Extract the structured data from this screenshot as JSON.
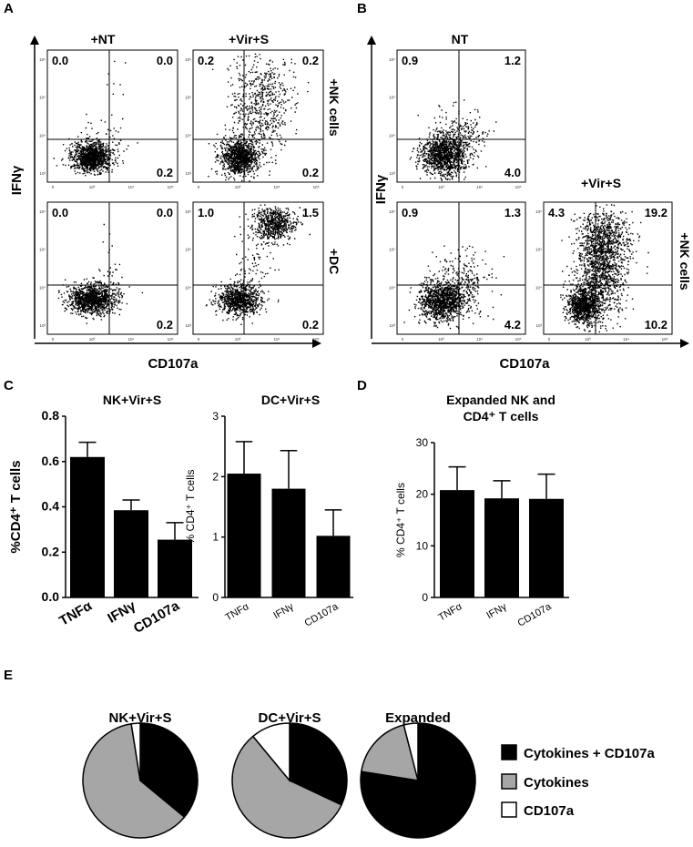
{
  "panel_labels": {
    "a": "A",
    "b": "B",
    "c": "C",
    "d": "D",
    "e": "E"
  },
  "panel_a": {
    "y_label": "IFNγ",
    "x_label": "CD107a",
    "col_titles": [
      "+NT",
      "+Vir+S"
    ],
    "row_labels": [
      "+NK cells",
      "+DC"
    ],
    "plots": [
      {
        "ul": "0.0",
        "ur": "0.0",
        "lr": "0.2"
      },
      {
        "ul": "0.2",
        "ur": "0.2",
        "lr": "0.2"
      },
      {
        "ul": "0.0",
        "ur": "0.0",
        "lr": "0.2"
      },
      {
        "ul": "1.0",
        "ur": "1.5",
        "lr": "0.2"
      }
    ]
  },
  "panel_b": {
    "y_label": "IFNγ",
    "x_label": "CD107a",
    "title_top": "NT",
    "title_right": "+Vir+S",
    "row_label": "+NK cells",
    "plots": [
      {
        "ul": "0.9",
        "ur": "1.2",
        "lr": "4.0"
      },
      {
        "ul": "0.9",
        "ur": "1.3",
        "lr": "4.2"
      },
      {
        "ul": "4.3",
        "ur": "19.2",
        "lr": "10.2"
      }
    ]
  },
  "chart_data": [
    {
      "type": "bar",
      "title": "NK+Vir+S",
      "ylabel": "%CD4⁺ T cells",
      "categories": [
        "TNFα",
        "IFNγ",
        "CD107a"
      ],
      "values": [
        0.62,
        0.385,
        0.255
      ],
      "errors": [
        0.065,
        0.045,
        0.075
      ],
      "ylim": [
        0,
        0.8
      ],
      "yticks": [
        "0.0",
        "0.2",
        "0.4",
        "0.6",
        "0.8"
      ]
    },
    {
      "type": "bar",
      "title": "DC+Vir+S",
      "ylabel": "% CD4⁺ T cells",
      "categories": [
        "TNFα",
        "IFNγ",
        "CD107a"
      ],
      "values": [
        2.05,
        1.8,
        1.02
      ],
      "errors": [
        0.53,
        0.63,
        0.43
      ],
      "ylim": [
        0,
        3
      ],
      "yticks": [
        "0",
        "1",
        "2",
        "3"
      ]
    },
    {
      "type": "bar",
      "title": "Expanded NK and CD4⁺ T cells",
      "title_lines": [
        "Expanded NK and",
        "CD4⁺ T cells"
      ],
      "ylabel": "% CD4⁺ T cells",
      "categories": [
        "TNFα",
        "IFNγ",
        "CD107a"
      ],
      "values": [
        20.8,
        19.2,
        19.1
      ],
      "errors": [
        4.5,
        3.4,
        4.8
      ],
      "ylim": [
        0,
        30
      ],
      "yticks": [
        "0",
        "10",
        "20",
        "30"
      ]
    },
    {
      "type": "pie",
      "title": "NK+Vir+S",
      "labels": [
        "Cytokines + CD107a",
        "Cytokines",
        "CD107a"
      ],
      "values": [
        36,
        61.5,
        2.5
      ]
    },
    {
      "type": "pie",
      "title": "DC+Vir+S",
      "labels": [
        "Cytokines + CD107a",
        "Cytokines",
        "CD107a"
      ],
      "values": [
        32,
        57,
        11
      ]
    },
    {
      "type": "pie",
      "title": "Expanded",
      "labels": [
        "Cytokines + CD107a",
        "Cytokines",
        "CD107a"
      ],
      "values": [
        77.5,
        18.5,
        4
      ]
    }
  ],
  "legend": [
    {
      "label": "Cytokines + CD107a",
      "color": "#000000"
    },
    {
      "label": "Cytokines",
      "color": "#a6a6a6"
    },
    {
      "label": "CD107a",
      "color": "#ffffff"
    }
  ],
  "flow_axis": {
    "log_ticks": [
      "10⁶",
      "10⁵",
      "10⁴",
      "10³",
      "0",
      "10³",
      "10⁴",
      "10⁵"
    ]
  }
}
